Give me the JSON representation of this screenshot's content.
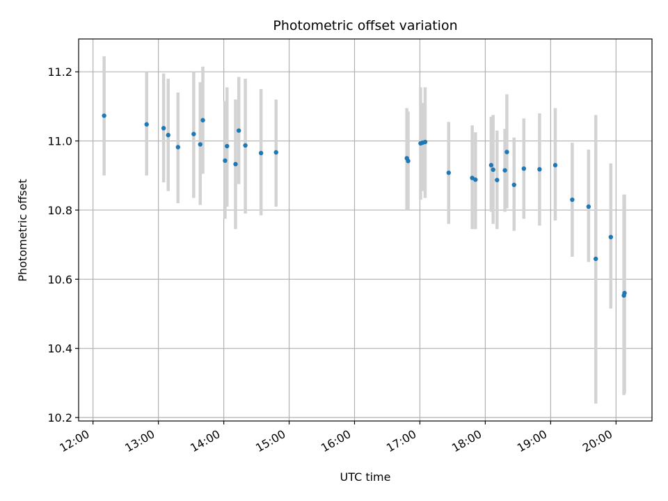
{
  "chart_data": {
    "type": "scatter",
    "title": "Photometric offset variation",
    "xlabel": "UTC time",
    "ylabel": "Photometric offset",
    "x_tick_labels": [
      "12:00",
      "13:00",
      "14:00",
      "15:00",
      "16:00",
      "17:00",
      "18:00",
      "19:00",
      "20:00"
    ],
    "y_tick_labels": [
      "10.2",
      "10.4",
      "10.6",
      "10.8",
      "11.0",
      "11.2"
    ],
    "x_ticks_hours": [
      12,
      13,
      14,
      15,
      16,
      17,
      18,
      19,
      20
    ],
    "y_ticks": [
      10.2,
      10.4,
      10.6,
      10.8,
      11.0,
      11.2
    ],
    "xlim_hours": [
      11.78,
      20.55
    ],
    "ylim": [
      10.19,
      11.295
    ],
    "grid": true,
    "point_color": "#1f77b4",
    "errorbar_color": "#d3d3d3",
    "points": [
      {
        "t": 12.17,
        "y": 11.073,
        "lo": 10.9,
        "hi": 11.245
      },
      {
        "t": 12.82,
        "y": 11.048,
        "lo": 10.9,
        "hi": 11.2
      },
      {
        "t": 13.08,
        "y": 11.037,
        "lo": 10.88,
        "hi": 11.195
      },
      {
        "t": 13.15,
        "y": 11.017,
        "lo": 10.855,
        "hi": 11.18
      },
      {
        "t": 13.3,
        "y": 10.982,
        "lo": 10.82,
        "hi": 11.14
      },
      {
        "t": 13.54,
        "y": 11.02,
        "lo": 10.835,
        "hi": 11.2
      },
      {
        "t": 13.64,
        "y": 10.99,
        "lo": 10.815,
        "hi": 11.17
      },
      {
        "t": 13.68,
        "y": 11.06,
        "lo": 10.905,
        "hi": 11.215
      },
      {
        "t": 14.02,
        "y": 10.943,
        "lo": 10.775,
        "hi": 11.115
      },
      {
        "t": 14.05,
        "y": 10.985,
        "lo": 10.81,
        "hi": 11.155
      },
      {
        "t": 14.18,
        "y": 10.933,
        "lo": 10.745,
        "hi": 11.12
      },
      {
        "t": 14.23,
        "y": 11.03,
        "lo": 10.875,
        "hi": 11.185
      },
      {
        "t": 14.33,
        "y": 10.987,
        "lo": 10.79,
        "hi": 11.18
      },
      {
        "t": 14.57,
        "y": 10.965,
        "lo": 10.785,
        "hi": 11.15
      },
      {
        "t": 14.8,
        "y": 10.967,
        "lo": 10.81,
        "hi": 11.12
      },
      {
        "t": 16.8,
        "y": 10.95,
        "lo": 10.8,
        "hi": 11.095
      },
      {
        "t": 16.82,
        "y": 10.942,
        "lo": 10.8,
        "hi": 11.085
      },
      {
        "t": 17.01,
        "y": 10.993,
        "lo": 10.83,
        "hi": 11.155
      },
      {
        "t": 17.04,
        "y": 10.995,
        "lo": 10.855,
        "hi": 11.11
      },
      {
        "t": 17.08,
        "y": 10.997,
        "lo": 10.835,
        "hi": 11.155
      },
      {
        "t": 17.44,
        "y": 10.908,
        "lo": 10.76,
        "hi": 11.055
      },
      {
        "t": 17.8,
        "y": 10.893,
        "lo": 10.745,
        "hi": 11.045
      },
      {
        "t": 17.85,
        "y": 10.888,
        "lo": 10.745,
        "hi": 11.025
      },
      {
        "t": 18.09,
        "y": 10.93,
        "lo": 10.795,
        "hi": 11.07
      },
      {
        "t": 18.12,
        "y": 10.917,
        "lo": 10.76,
        "hi": 11.075
      },
      {
        "t": 18.18,
        "y": 10.887,
        "lo": 10.745,
        "hi": 11.03
      },
      {
        "t": 18.3,
        "y": 10.915,
        "lo": 10.795,
        "hi": 11.035
      },
      {
        "t": 18.33,
        "y": 10.968,
        "lo": 10.805,
        "hi": 11.135
      },
      {
        "t": 18.44,
        "y": 10.873,
        "lo": 10.74,
        "hi": 11.01
      },
      {
        "t": 18.59,
        "y": 10.92,
        "lo": 10.775,
        "hi": 11.065
      },
      {
        "t": 18.83,
        "y": 10.918,
        "lo": 10.755,
        "hi": 11.08
      },
      {
        "t": 19.07,
        "y": 10.93,
        "lo": 10.77,
        "hi": 11.095
      },
      {
        "t": 19.33,
        "y": 10.83,
        "lo": 10.665,
        "hi": 10.995
      },
      {
        "t": 19.58,
        "y": 10.81,
        "lo": 10.65,
        "hi": 10.975
      },
      {
        "t": 19.69,
        "y": 10.659,
        "lo": 10.24,
        "hi": 11.075
      },
      {
        "t": 19.92,
        "y": 10.722,
        "lo": 10.515,
        "hi": 10.935
      },
      {
        "t": 20.12,
        "y": 10.553,
        "lo": 10.265,
        "hi": 10.845
      },
      {
        "t": 20.13,
        "y": 10.56,
        "lo": 10.27,
        "hi": 10.845
      }
    ]
  }
}
